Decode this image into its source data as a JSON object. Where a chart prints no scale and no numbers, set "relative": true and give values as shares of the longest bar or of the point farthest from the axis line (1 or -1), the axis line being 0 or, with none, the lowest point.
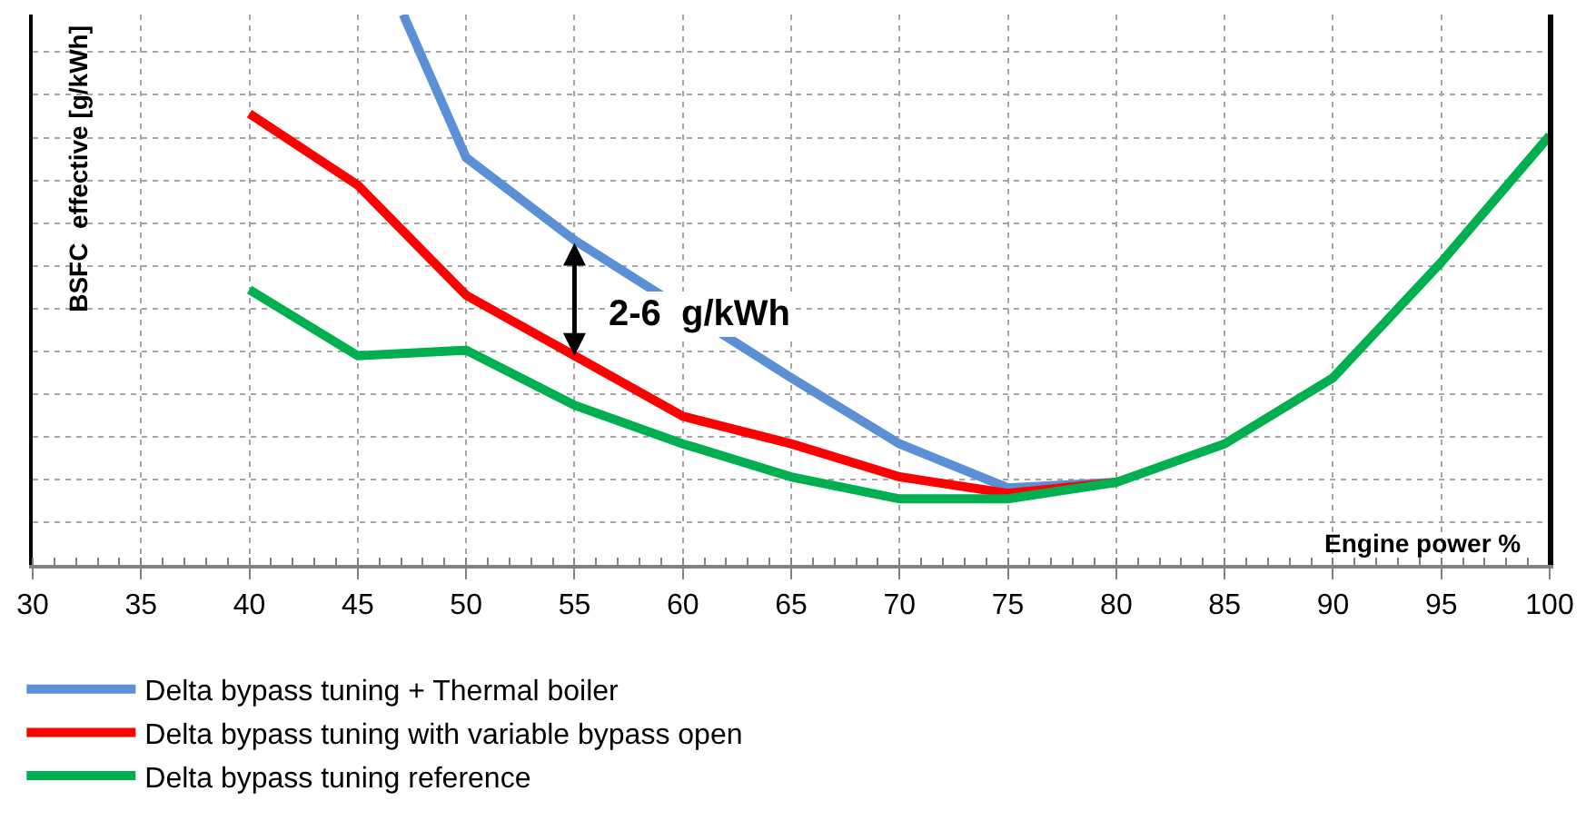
{
  "chart_data": {
    "type": "line",
    "relative": true,
    "xlabel": "Engine power %",
    "ylabel": "BSFC  effective [g/kWh]",
    "xlim": [
      30,
      100
    ],
    "xticks": [
      30,
      35,
      40,
      45,
      50,
      55,
      60,
      65,
      70,
      75,
      80,
      85,
      90,
      95,
      100
    ],
    "grid": true,
    "legend": "bottom",
    "marker": "none",
    "annotations": [
      {
        "text": "2-6  g/kWh",
        "x": 55,
        "y": 0.38
      }
    ],
    "series": [
      {
        "name": "Delta bypass tuning + Thermal boiler",
        "color": "#5b8fd6",
        "x": [
          47.1,
          50,
          55,
          60,
          65,
          70,
          75,
          80
        ],
        "values": [
          1,
          0.74,
          0.59,
          null,
          0.34,
          0.22,
          0.14,
          0.15
        ]
      },
      {
        "name": "Delta bypass tuning with variable bypass open",
        "color": "#ff0000",
        "x": [
          40,
          45,
          50,
          55,
          60,
          65,
          70,
          75,
          80
        ],
        "values": [
          0.82,
          0.69,
          0.49,
          0.38,
          0.27,
          0.22,
          0.16,
          0.13,
          0.15
        ]
      },
      {
        "name": "Delta bypass tuning reference",
        "color": "#00b050",
        "x": [
          40,
          45,
          50,
          55,
          60,
          65,
          70,
          75,
          80,
          85,
          90,
          95,
          100
        ],
        "values": [
          0.5,
          0.38,
          0.39,
          0.29,
          0.22,
          0.16,
          0.12,
          0.12,
          0.15,
          0.22,
          0.34,
          0.55,
          0.78
        ]
      }
    ]
  }
}
